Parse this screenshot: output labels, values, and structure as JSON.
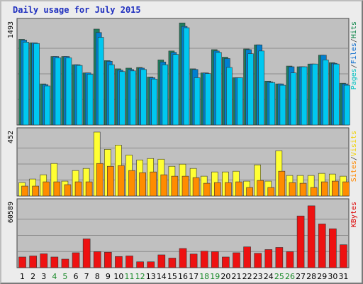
{
  "title": "Daily usage for July 2015",
  "chart_data": {
    "type": "bar",
    "title": "Daily usage for July 2015",
    "categories": [
      "1",
      "2",
      "3",
      "4",
      "5",
      "6",
      "7",
      "8",
      "9",
      "10",
      "11",
      "12",
      "13",
      "14",
      "15",
      "16",
      "17",
      "18",
      "19",
      "20",
      "21",
      "22",
      "23",
      "24",
      "25",
      "26",
      "27",
      "28",
      "29",
      "30",
      "31"
    ],
    "weekend_days": [
      "4",
      "5",
      "11",
      "12",
      "18",
      "19",
      "25",
      "26"
    ],
    "panels": [
      {
        "id": "hits",
        "ylim": [
          0,
          1493
        ],
        "max_label": "1493",
        "side_label": [
          "Pages",
          "/",
          "Files",
          "/",
          "Hits"
        ],
        "side_colors": [
          "#00c0c0",
          "#444444",
          "#0066cc",
          "#444444",
          "#008040"
        ],
        "series": [
          {
            "name": "Hits",
            "color": "#1e7e5e",
            "values": [
              1250,
              1200,
              600,
              1000,
              1000,
              880,
              760,
              1400,
              940,
              820,
              830,
              840,
              700,
              950,
              1080,
              1490,
              820,
              760,
              1100,
              990,
              690,
              1110,
              1170,
              640,
              600,
              860,
              850,
              890,
              1020,
              910,
              610
            ]
          },
          {
            "name": "Files",
            "color": "#0080d0",
            "values": [
              1240,
              1200,
              590,
              1000,
              1000,
              880,
              760,
              1350,
              930,
              800,
              810,
              830,
              690,
              920,
              1060,
              1440,
              810,
              760,
              1080,
              970,
              690,
              1100,
              1170,
              630,
              600,
              850,
              850,
              890,
              1020,
              900,
              600
            ]
          },
          {
            "name": "Pages",
            "color": "#00c8f0",
            "values": [
              1210,
              1190,
              570,
              980,
              980,
              870,
              740,
              1280,
              880,
              780,
              790,
              810,
              670,
              880,
              1030,
              1420,
              690,
              750,
              1060,
              840,
              690,
              1040,
              1080,
              620,
              580,
              760,
              850,
              890,
              950,
              890,
              580
            ]
          }
        ]
      },
      {
        "id": "visits",
        "ylim": [
          0,
          452
        ],
        "max_label": "452",
        "side_label": [
          "Sites",
          "/",
          "Visits"
        ],
        "side_colors": [
          "#ff8800",
          "#444444",
          "#f0d000"
        ],
        "series": [
          {
            "name": "Visits",
            "color": "#ffff33",
            "values": [
              95,
              120,
              150,
              230,
              105,
              180,
              195,
              452,
              330,
              360,
              290,
              255,
              265,
              260,
              210,
              225,
              195,
              140,
              170,
              170,
              175,
              105,
              220,
              105,
              320,
              145,
              145,
              145,
              160,
              155,
              140
            ]
          },
          {
            "name": "Sites",
            "color": "#ff8c00",
            "values": [
              70,
              70,
              100,
              100,
              80,
              100,
              100,
              230,
              210,
              215,
              180,
              165,
              170,
              150,
              140,
              140,
              130,
              90,
              95,
              95,
              100,
              60,
              110,
              60,
              175,
              95,
              90,
              60,
              100,
              105,
              100
            ]
          }
        ]
      },
      {
        "id": "kbytes",
        "ylim": [
          0,
          60589
        ],
        "max_label": "60589",
        "side_label": [
          "KBytes"
        ],
        "side_colors": [
          "#dd0000"
        ],
        "series": [
          {
            "name": "KBytes",
            "color": "#ee1111",
            "values": [
              10000,
              11000,
              13000,
              10000,
              8000,
              14000,
              27000,
              15000,
              14500,
              10500,
              11000,
              5500,
              5500,
              12000,
              9000,
              18000,
              12800,
              15500,
              15000,
              10000,
              14000,
              19500,
              13500,
              17000,
              19000,
              15000,
              48500,
              58000,
              41000,
              36500,
              21500
            ]
          }
        ]
      }
    ]
  }
}
